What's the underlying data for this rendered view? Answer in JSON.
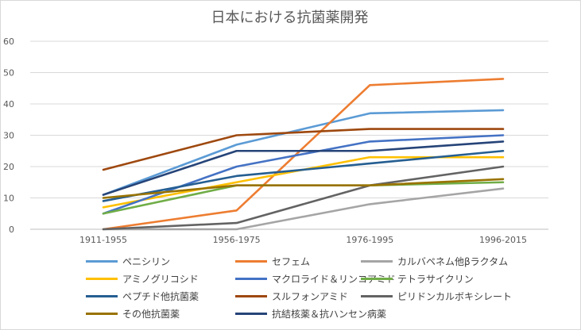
{
  "chart_data": {
    "type": "line",
    "title": "日本における抗菌薬開発",
    "categories": [
      "1911-1955",
      "1956-1975",
      "1976-1995",
      "1996-2015"
    ],
    "ylim": [
      0,
      60
    ],
    "yticks": [
      0,
      10,
      20,
      30,
      40,
      50,
      60
    ],
    "grid": true,
    "legend_position": "bottom",
    "series": [
      {
        "name": "ペニシリン",
        "color": "#5b9bd5",
        "values": [
          11,
          27,
          37,
          38
        ]
      },
      {
        "name": "セフェム",
        "color": "#ed7d31",
        "values": [
          0,
          6,
          46,
          48
        ]
      },
      {
        "name": "カルバペネム他βラクタム",
        "color": "#a5a5a5",
        "values": [
          0,
          0,
          8,
          13
        ]
      },
      {
        "name": "アミノグリコシド",
        "color": "#ffc000",
        "values": [
          7,
          15,
          23,
          23
        ]
      },
      {
        "name": "マクロライド＆リンコアミド",
        "color": "#4472c4",
        "values": [
          5,
          20,
          28,
          30
        ]
      },
      {
        "name": "テトラサイクリン",
        "color": "#70ad47",
        "values": [
          5,
          14,
          14,
          15
        ]
      },
      {
        "name": "ペプチド他抗菌薬",
        "color": "#255e91",
        "values": [
          9,
          17,
          21,
          25
        ]
      },
      {
        "name": "スルフォンアミド",
        "color": "#9e480e",
        "values": [
          19,
          30,
          32,
          32
        ]
      },
      {
        "name": "ピリドンカルボキシレート",
        "color": "#636363",
        "values": [
          0,
          2,
          14,
          20
        ]
      },
      {
        "name": "その他抗菌薬",
        "color": "#997300",
        "values": [
          10,
          14,
          14,
          16
        ]
      },
      {
        "name": "抗結核薬＆抗ハンセン病薬",
        "color": "#264478",
        "values": [
          11,
          25,
          25,
          28
        ]
      }
    ]
  }
}
